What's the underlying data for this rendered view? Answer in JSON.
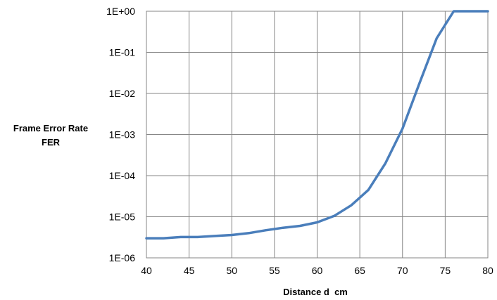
{
  "chart_data": {
    "type": "line",
    "title": "",
    "xlabel": "Distance d  cm",
    "ylabel_lines": [
      "Frame Error Rate",
      "FER"
    ],
    "xlim": [
      40,
      80
    ],
    "ylim": [
      1e-06,
      1
    ],
    "y_scale": "log",
    "grid": true,
    "x_ticks": [
      40,
      45,
      50,
      55,
      60,
      65,
      70,
      75,
      80
    ],
    "x_tick_labels": [
      "40",
      "45",
      "50",
      "55",
      "60",
      "65",
      "70",
      "75",
      "80"
    ],
    "y_ticks": [
      1e-06,
      1e-05,
      0.0001,
      0.001,
      0.01,
      0.1,
      1
    ],
    "y_tick_labels": [
      "1E-06",
      "1E-05",
      "1E-04",
      "1E-03",
      "1E-02",
      "1E-01",
      "1E+00"
    ],
    "series": [
      {
        "color": "#4a7ebb",
        "x": [
          40,
          42,
          44,
          46,
          48,
          50,
          52,
          54,
          56,
          58,
          60,
          62,
          64,
          66,
          68,
          70,
          72,
          74,
          76,
          78,
          80
        ],
        "y": [
          3e-06,
          3e-06,
          3.2e-06,
          3.2e-06,
          3.4e-06,
          3.6e-06,
          4e-06,
          4.7e-06,
          5.4e-06,
          6e-06,
          7.3e-06,
          1.05e-05,
          1.9e-05,
          4.5e-05,
          0.0002,
          0.0014,
          0.018,
          0.22,
          1,
          1,
          1
        ]
      }
    ]
  }
}
